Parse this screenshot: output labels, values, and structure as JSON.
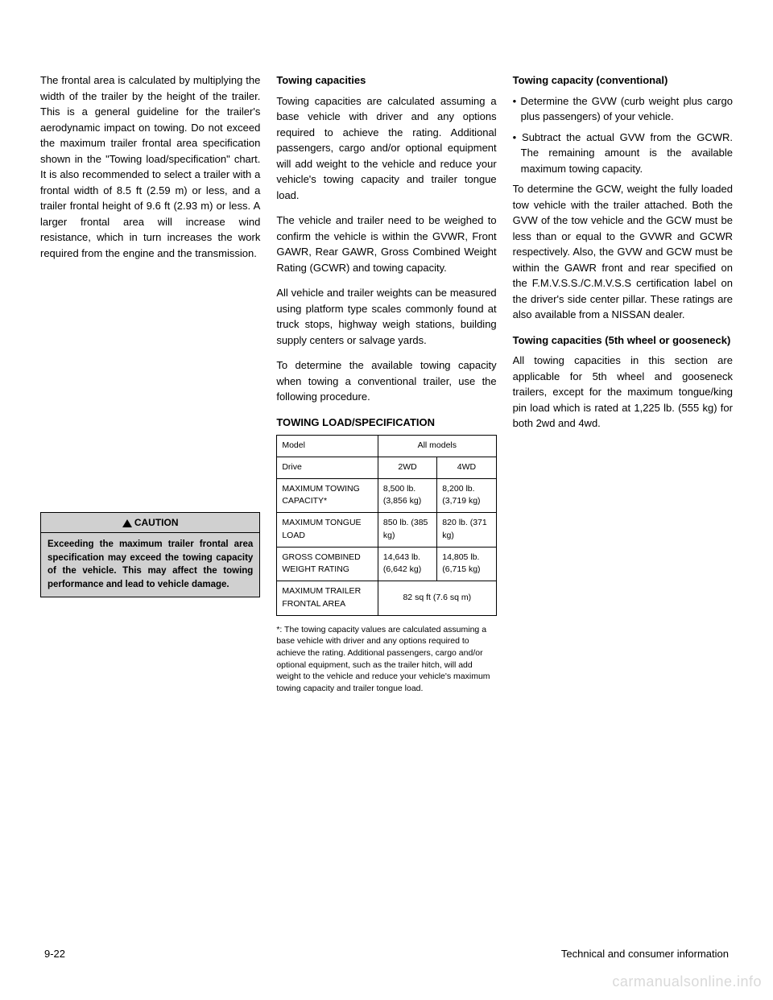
{
  "left": {
    "para": "The frontal area is calculated by multiplying the width of the trailer by the height of the trailer. This is a general guideline for the trailer's aerodynamic impact on towing. Do not exceed the maximum trailer frontal area specification shown in the \"Towing load/specification\" chart. It is also recommended to select a trailer with a frontal width of 8.5 ft (2.59 m) or less, and a trailer frontal height of 9.6 ft (2.93 m) or less. A larger frontal area will increase wind resistance, which in turn increases the work required from the engine and the transmission."
  },
  "caution": {
    "label": "CAUTION",
    "body": "Exceeding the maximum trailer frontal area specification may exceed the towing capacity of the vehicle. This may affect the towing performance and lead to vehicle damage."
  },
  "middle": {
    "heading": "Towing capacities",
    "para1": "Towing capacities are calculated assuming a base vehicle with driver and any options required to achieve the rating. Additional passengers, cargo and/or optional equipment will add weight to the vehicle and reduce your vehicle's towing capacity and trailer tongue load.",
    "para2": "The vehicle and trailer need to be weighed to confirm the vehicle is within the GVWR, Front GAWR, Rear GAWR, Gross Combined Weight Rating (GCWR) and towing capacity.",
    "para3": "All vehicle and trailer weights can be measured using platform type scales commonly found at truck stops, highway weigh stations, building supply centers or salvage yards.",
    "para4": "To determine the available towing capacity when towing a conventional trailer, use the following procedure.",
    "spec_heading": "TOWING LOAD/SPECIFICATION",
    "table_note": "*: The towing capacity values are calculated assuming a base vehicle with driver and any options required to achieve the rating. Additional passengers, cargo and/or optional equipment, such as the trailer hitch, will add weight to the vehicle and reduce your vehicle's maximum towing capacity and trailer tongue load."
  },
  "spec_table": {
    "rows": [
      {
        "label": "Model",
        "col1": "All models",
        "colspan": 2
      },
      {
        "label": "Drive",
        "col1": "2WD",
        "col2": "4WD"
      },
      {
        "label": "MAXIMUM TOWING CAPACITY*",
        "col1": "8,500 lb. (3,856 kg)",
        "col2": "8,200 lb. (3,719 kg)"
      },
      {
        "label": "MAXIMUM TONGUE LOAD",
        "col1": "850 lb. (385 kg)",
        "col2": "820 lb. (371 kg)"
      },
      {
        "label": "GROSS COMBINED WEIGHT RATING",
        "col1": "14,643 lb. (6,642 kg)",
        "col2": "14,805 lb. (6,715 kg)"
      },
      {
        "label": "MAXIMUM TRAILER FRONTAL AREA",
        "col1": "82 sq ft (7.6 sq m)",
        "colspan": 2
      }
    ]
  },
  "right": {
    "heading": "Towing capacity (conventional)",
    "bullet1": "• Determine the GVW (curb weight plus cargo plus passengers) of your vehicle.",
    "bullet2": "• Subtract the actual GVW from the GCWR. The remaining amount is the available maximum towing capacity.",
    "para1": "To determine the GCW, weight the fully loaded tow vehicle with the trailer attached. Both the GVW of the tow vehicle and the GCW must be less than or equal to the GVWR and GCWR respectively. Also, the GVW and GCW must be within the GAWR front and rear specified on the F.M.V.S.S./C.M.V.S.S certification label on the driver's side center pillar. These ratings are also available from a NISSAN dealer.",
    "heading2": "Towing capacities (5th wheel or gooseneck)",
    "para2": "All towing capacities in this section are applicable for 5th wheel and gooseneck trailers, except for the maximum tongue/king pin load which is rated at 1,225 lb. (555 kg) for both 2wd and 4wd."
  },
  "footer": {
    "left": "9-22",
    "right": "Technical and consumer information"
  },
  "watermark": "carmanualsonline.info"
}
